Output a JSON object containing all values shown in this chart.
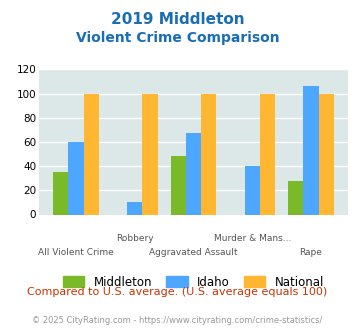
{
  "title_line1": "2019 Middleton",
  "title_line2": "Violent Crime Comparison",
  "middleton": [
    35,
    0,
    48,
    0,
    28
  ],
  "idaho": [
    60,
    10,
    67,
    40,
    106
  ],
  "national": [
    100,
    100,
    100,
    100,
    100
  ],
  "top_labels": [
    "",
    "Robbery",
    "",
    "Murder & Mans...",
    ""
  ],
  "bottom_labels": [
    "All Violent Crime",
    "",
    "Aggravated Assault",
    "",
    "Rape"
  ],
  "color_middleton": "#7aba28",
  "color_idaho": "#4da6ff",
  "color_national": "#ffb732",
  "ylim": [
    0,
    120
  ],
  "yticks": [
    0,
    20,
    40,
    60,
    80,
    100,
    120
  ],
  "bg_color": "#dce8e8",
  "title_color": "#1a6db5",
  "footer_color": "#999999",
  "compare_color": "#cc3300",
  "footer_text": "© 2025 CityRating.com - https://www.cityrating.com/crime-statistics/",
  "compare_text": "Compared to U.S. average. (U.S. average equals 100)"
}
